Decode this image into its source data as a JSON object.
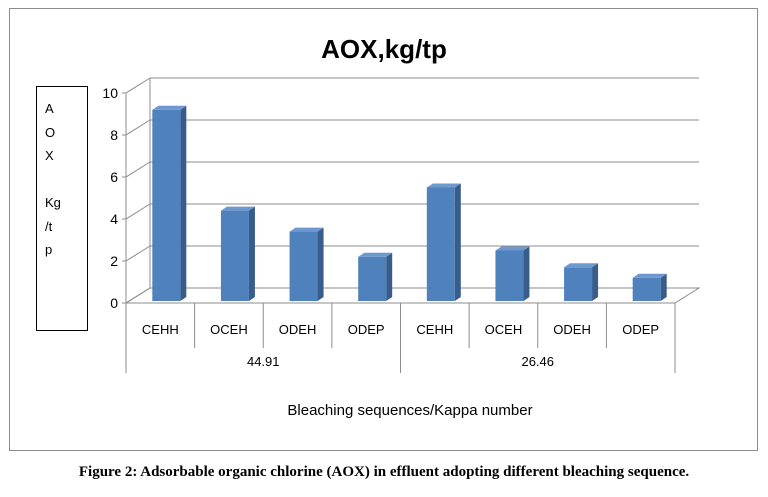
{
  "chart_data": {
    "type": "bar",
    "title": "AOX,kg/tp",
    "ylabel": "A\nO\nX\n\nKg\n/t\np",
    "xlabel": "Bleaching sequences/Kappa number",
    "groups": [
      {
        "label": "44.91",
        "categories": [
          "CEHH",
          "OCEH",
          "ODEH",
          "ODEP"
        ],
        "values": [
          9.2,
          4.4,
          3.4,
          2.2
        ]
      },
      {
        "label": "26.46",
        "categories": [
          "CEHH",
          "OCEH",
          "ODEH",
          "ODEP"
        ],
        "values": [
          5.5,
          2.5,
          1.7,
          1.2
        ]
      }
    ],
    "ylim": [
      0,
      10
    ],
    "yticks": [
      "0",
      "2",
      "4",
      "6",
      "8",
      "10"
    ],
    "grid": true,
    "legend": "none",
    "bar_color": "#4f81bd"
  },
  "caption": "Figure 2: Adsorbable organic chlorine (AOX) in effluent adopting different bleaching sequence."
}
